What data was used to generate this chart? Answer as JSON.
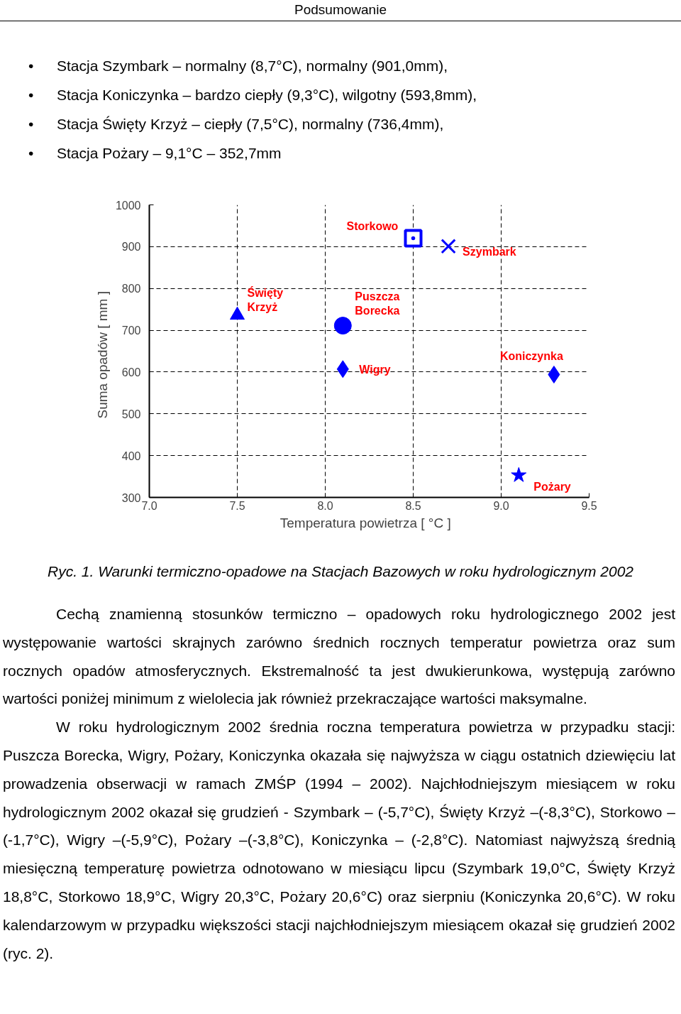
{
  "chart_data": {
    "type": "scatter",
    "title": "Podsumowanie",
    "xlabel": "Temperatura powietrza   [ °C ]",
    "ylabel": "Suma opadów   [ mm ]",
    "xlim": [
      7.0,
      9.5
    ],
    "xticks": [
      {
        "value": 7.0,
        "label": "7.0"
      },
      {
        "value": 7.5,
        "label": "7.5"
      },
      {
        "value": 8.0,
        "label": "8.0"
      },
      {
        "value": 8.5,
        "label": "8.5"
      },
      {
        "value": 9.0,
        "label": "9.0"
      },
      {
        "value": 9.5,
        "label": "9.5"
      }
    ],
    "ylim": [
      300,
      1000
    ],
    "yticks": [
      300,
      400,
      500,
      600,
      700,
      800,
      900,
      1000
    ],
    "grid": true,
    "legend": false,
    "series": [
      {
        "name": "Storkowo",
        "color": "#0000ff",
        "marker": "square",
        "x": [
          8.5
        ],
        "values": [
          920
        ]
      },
      {
        "name": "Szymbark",
        "color": "#0000ff",
        "marker": "cross",
        "x": [
          8.7
        ],
        "values": [
          901
        ]
      },
      {
        "name": "Święty Krzyż",
        "color": "#0000ff",
        "marker": "triangle",
        "x": [
          7.5
        ],
        "values": [
          736
        ]
      },
      {
        "name": "Puszcza Borecka",
        "color": "#0000ff",
        "marker": "circle",
        "x": [
          8.1
        ],
        "values": [
          711
        ]
      },
      {
        "name": "Wigry",
        "color": "#0000ff",
        "marker": "diamond",
        "x": [
          8.1
        ],
        "values": [
          607
        ]
      },
      {
        "name": "Koniczynka",
        "color": "#0000ff",
        "marker": "diamond",
        "x": [
          9.3
        ],
        "values": [
          594
        ]
      },
      {
        "name": "Pożary",
        "color": "#0000ff",
        "marker": "star",
        "x": [
          9.1
        ],
        "values": [
          353
        ]
      }
    ],
    "annotations": [
      "• Stacja Szymbark – normalny (8,7°C), normalny (901,0mm),",
      "• Stacja Koniczynka – bardzo ciepły (9,3°C), wilgotny (593,8mm),",
      "• Stacja Święty Krzyż – ciepły (7,5°C), normalny (736,4mm),",
      "• Stacja Pożary – 9,1°C – 352,7mm",
      "Ryc. 1. Warunki termiczno-opadowe na Stacjach Bazowych w roku hydrologicznym 2002",
      "Cechą znamienną stosunków termiczno – opadowych roku hydrologicznego 2002 jest występowanie wartości skrajnych zarówno średnich rocznych temperatur powietrza oraz sum rocznych opadów atmosferycznych. Ekstremalność ta jest dwukierunkowa, występują zarówno wartości poniżej minimum z wielolecia jak również przekraczające wartości maksymalne.",
      "W roku hydrologicznym 2002 średnia roczna temperatura powietrza w przypadku stacji: Puszcza Borecka, Wigry, Pożary, Koniczynka okazała się najwyższa w ciągu ostatnich dziewięciu lat prowadzenia obserwacji w ramach ZMŚP (1994 – 2002). Najchłodniejszym miesiącem w roku hydrologicznym 2002 okazał się grudzień - Szymbark – (-5,7°C), Święty Krzyż –(-8,3°C), Storkowo –(-1,7°C), Wigry –(-5,9°C), Pożary –(-3,8°C), Koniczynka – (-2,8°C). Natomiast najwyższą średnią miesięczną temperaturę powietrza odnotowano w miesiącu lipcu (Szymbark 19,0°C, Święty Krzyż 18,8°C, Storkowo 18,9°C, Wigry 20,3°C, Pożary 20,6°C) oraz sierpniu (Koniczynka 20,6°C). W roku kalendarzowym w przypadku większości stacji najchłodniejszym miesiącem okazał się grudzień 2002 (ryc. 2)."
    ]
  }
}
